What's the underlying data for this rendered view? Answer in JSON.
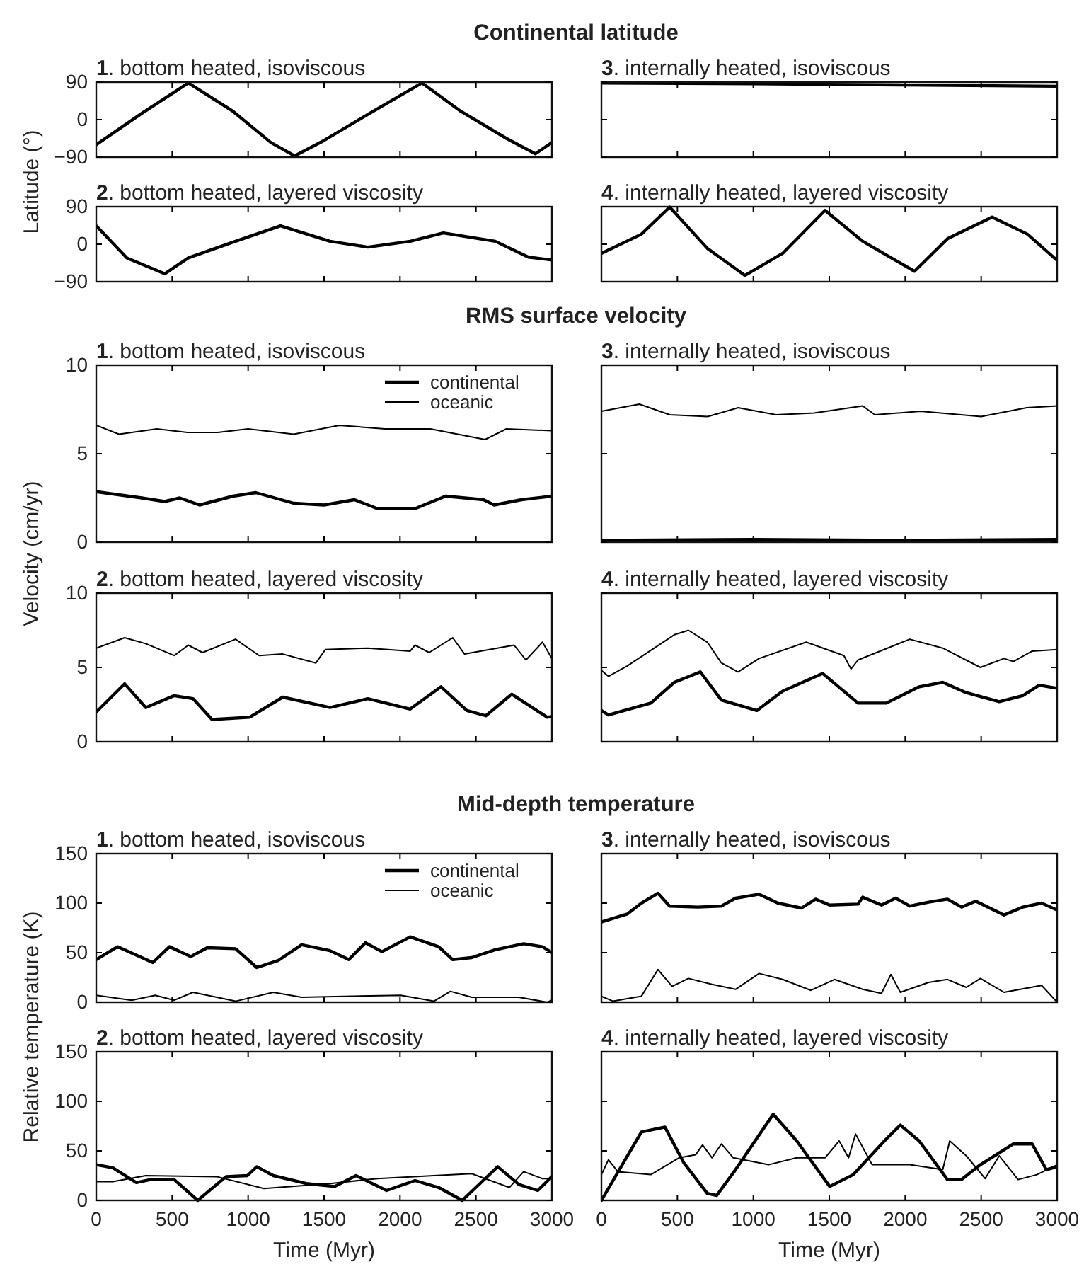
{
  "chart_data": [
    {
      "type": "line",
      "title": "Continental latitude",
      "subtitle": "1. bottom heated, isoviscous",
      "ylabel": "Latitude (°)",
      "tick_labels": "y",
      "xlim": [
        0,
        3000
      ],
      "xticks": [
        0,
        500,
        1000,
        1500,
        2000,
        2500,
        3000
      ],
      "ylim": [
        -90,
        90
      ],
      "yticks": [
        {
          "value": -90,
          "label": "−90"
        },
        0,
        90
      ],
      "series": [
        {
          "color": "#000000",
          "x": [
            0,
            300,
            606,
            900,
            1150,
            1306,
            1500,
            1800,
            2145,
            2400,
            2700,
            2891,
            3000
          ],
          "values": [
            -60,
            15,
            88,
            20,
            -55,
            -87,
            -50,
            15,
            88,
            20,
            -45,
            -82,
            -55
          ]
        }
      ]
    },
    {
      "type": "line",
      "subtitle": "3. internally heated, isoviscous",
      "tick_labels": false,
      "xlim": [
        0,
        3000
      ],
      "xticks": [
        0,
        500,
        1000,
        1500,
        2000,
        2500,
        3000
      ],
      "ylim": [
        -90,
        90
      ],
      "yticks": [
        -90,
        0,
        90
      ],
      "series": [
        {
          "color": "#000000",
          "x": [
            0,
            1000,
            2000,
            3000
          ],
          "values": [
            88,
            86,
            83,
            80
          ]
        }
      ]
    },
    {
      "type": "line",
      "subtitle": "2. bottom heated, layered viscosity",
      "tick_labels": "y",
      "xlim": [
        0,
        3000
      ],
      "xticks": [
        0,
        500,
        1000,
        1500,
        2000,
        2500,
        3000
      ],
      "ylim": [
        -90,
        90
      ],
      "yticks": [
        {
          "value": -90,
          "label": "−90"
        },
        0,
        90
      ],
      "series": [
        {
          "color": "#000000",
          "x": [
            0,
            202,
            451,
            606,
            917,
            1213,
            1539,
            1788,
            2067,
            2285,
            2627,
            2845,
            3000
          ],
          "values": [
            44,
            -33,
            -71,
            -33,
            7,
            44,
            7,
            -7,
            7,
            27,
            7,
            -31,
            -38
          ]
        }
      ]
    },
    {
      "type": "line",
      "subtitle": "4. internally heated, layered viscosity",
      "tick_labels": false,
      "xlim": [
        0,
        3000
      ],
      "xticks": [
        0,
        500,
        1000,
        1500,
        2000,
        2500,
        3000
      ],
      "ylim": [
        -90,
        90
      ],
      "yticks": [
        -90,
        0,
        90
      ],
      "series": [
        {
          "color": "#000000",
          "x": [
            0,
            263,
            449,
            697,
            945,
            1193,
            1472,
            1720,
            2061,
            2278,
            2572,
            2805,
            3000
          ],
          "values": [
            -22,
            24,
            89,
            -10,
            -75,
            -22,
            81,
            7,
            -65,
            13,
            65,
            24,
            -39
          ]
        }
      ]
    },
    {
      "type": "line",
      "title": "RMS surface velocity",
      "subtitle": "1. bottom heated, isoviscous",
      "ylabel": "Velocity (cm/yr)",
      "tick_labels": "y",
      "legend": "top right",
      "xlim": [
        0,
        3000
      ],
      "xticks": [
        0,
        500,
        1000,
        1500,
        2000,
        2500,
        3000
      ],
      "ylim": [
        0,
        10
      ],
      "yticks": [
        0,
        5,
        10
      ],
      "series": [
        {
          "name": "continental",
          "color": "#000000",
          "x": [
            0,
            300,
            450,
            550,
            680,
            900,
            1050,
            1300,
            1500,
            1700,
            1850,
            2100,
            2300,
            2550,
            2620,
            2800,
            3000
          ],
          "values": [
            2.85,
            2.5,
            2.3,
            2.5,
            2.1,
            2.6,
            2.8,
            2.2,
            2.1,
            2.4,
            1.9,
            1.9,
            2.6,
            2.4,
            2.1,
            2.4,
            2.6
          ]
        },
        {
          "name": "oceanic",
          "color": "#000000",
          "x": [
            0,
            150,
            400,
            600,
            800,
            1000,
            1300,
            1600,
            1900,
            2200,
            2560,
            2700,
            3000
          ],
          "values": [
            6.6,
            6.1,
            6.4,
            6.2,
            6.2,
            6.4,
            6.1,
            6.6,
            6.4,
            6.4,
            5.8,
            6.4,
            6.3
          ]
        }
      ]
    },
    {
      "type": "line",
      "subtitle": "3. internally heated, isoviscous",
      "tick_labels": false,
      "xlim": [
        0,
        3000
      ],
      "xticks": [
        0,
        500,
        1000,
        1500,
        2000,
        2500,
        3000
      ],
      "ylim": [
        0,
        10
      ],
      "yticks": [
        0,
        5,
        10
      ],
      "series": [
        {
          "color": "#000000",
          "x": [
            0,
            1000,
            2000,
            3000
          ],
          "values": [
            0.1,
            0.15,
            0.1,
            0.15
          ]
        },
        {
          "color": "#000000",
          "x": [
            0,
            250,
            450,
            700,
            900,
            1150,
            1400,
            1720,
            1800,
            2100,
            2500,
            2800,
            3000
          ],
          "values": [
            7.4,
            7.8,
            7.2,
            7.1,
            7.6,
            7.2,
            7.3,
            7.7,
            7.2,
            7.4,
            7.1,
            7.6,
            7.7
          ]
        }
      ]
    },
    {
      "type": "line",
      "subtitle": "2. bottom heated, layered viscosity",
      "tick_labels": "y",
      "xlim": [
        0,
        3000
      ],
      "xticks": [
        0,
        500,
        1000,
        1500,
        2000,
        2500,
        3000
      ],
      "ylim": [
        0,
        10
      ],
      "yticks": [
        0,
        5,
        10
      ],
      "series": [
        {
          "color": "#000000",
          "x": [
            0,
            187,
            326,
            513,
            637,
            762,
            1010,
            1228,
            1539,
            1788,
            2067,
            2270,
            2440,
            2565,
            2736,
            2969,
            3000
          ],
          "values": [
            2.0,
            3.9,
            2.3,
            3.1,
            2.9,
            1.5,
            1.65,
            3.0,
            2.3,
            2.9,
            2.2,
            3.7,
            2.1,
            1.75,
            3.2,
            1.65,
            1.7
          ]
        },
        {
          "color": "#000000",
          "x": [
            0,
            187,
            326,
            513,
            606,
            700,
            917,
            1073,
            1228,
            1446,
            1508,
            1788,
            2067,
            2099,
            2192,
            2347,
            2425,
            2751,
            2829,
            2938,
            3000
          ],
          "values": [
            6.3,
            7.0,
            6.6,
            5.8,
            6.5,
            6.0,
            6.9,
            5.8,
            5.9,
            5.3,
            6.2,
            6.3,
            6.1,
            6.5,
            6.0,
            7.0,
            5.9,
            6.5,
            5.5,
            6.7,
            5.6
          ]
        }
      ]
    },
    {
      "type": "line",
      "subtitle": "4. internally heated, layered viscosity",
      "tick_labels": false,
      "xlim": [
        0,
        3000
      ],
      "xticks": [
        0,
        500,
        1000,
        1500,
        2000,
        2500,
        3000
      ],
      "ylim": [
        0,
        10
      ],
      "yticks": [
        0,
        5,
        10
      ],
      "series": [
        {
          "color": "#000000",
          "x": [
            0,
            46,
            325,
            480,
            651,
            790,
            1023,
            1193,
            1456,
            1689,
            1875,
            2092,
            2247,
            2402,
            2619,
            2774,
            2882,
            3000
          ],
          "values": [
            2.1,
            1.8,
            2.6,
            4.0,
            4.7,
            2.8,
            2.1,
            3.4,
            4.6,
            2.6,
            2.6,
            3.7,
            4.0,
            3.3,
            2.7,
            3.1,
            3.8,
            3.6
          ]
        },
        {
          "color": "#000000",
          "x": [
            0,
            46,
            170,
            480,
            573,
            697,
            790,
            899,
            1038,
            1348,
            1596,
            1643,
            1689,
            2030,
            2247,
            2495,
            2650,
            2712,
            2836,
            3000
          ],
          "values": [
            4.8,
            4.4,
            5.1,
            7.2,
            7.5,
            6.7,
            5.3,
            4.7,
            5.6,
            6.7,
            5.8,
            4.9,
            5.5,
            6.9,
            6.3,
            5.0,
            5.6,
            5.4,
            6.1,
            6.2
          ]
        }
      ]
    },
    {
      "type": "line",
      "title": "Mid-depth temperature",
      "subtitle": "1. bottom heated, isoviscous",
      "ylabel": "Relative temperature (K)",
      "tick_labels": "y",
      "legend": "top right",
      "xlim": [
        0,
        3000
      ],
      "xticks": [
        0,
        500,
        1000,
        1500,
        2000,
        2500,
        3000
      ],
      "ylim": [
        0,
        150
      ],
      "yticks": [
        0,
        50,
        100,
        150
      ],
      "series": [
        {
          "name": "continental",
          "color": "#000000",
          "x": [
            0,
            140,
            373,
            482,
            622,
            731,
            917,
            1057,
            1197,
            1352,
            1539,
            1663,
            1772,
            1881,
            2067,
            2254,
            2347,
            2472,
            2627,
            2814,
            2938,
            3000
          ],
          "values": [
            43,
            56,
            40,
            56,
            46,
            55,
            54,
            35,
            42,
            58,
            52,
            43,
            60,
            51,
            66,
            56,
            43,
            45,
            53,
            59,
            56,
            50
          ]
        },
        {
          "name": "oceanic",
          "color": "#000000",
          "x": [
            0,
            233,
            389,
            513,
            637,
            917,
            1166,
            1352,
            2005,
            2223,
            2332,
            2472,
            2783,
            2969,
            3000
          ],
          "values": [
            7,
            2,
            7,
            2,
            10,
            1,
            10,
            5,
            7,
            1,
            11,
            5,
            5,
            0,
            2
          ]
        }
      ]
    },
    {
      "type": "line",
      "subtitle": "3. internally heated, isoviscous",
      "tick_labels": false,
      "xlim": [
        0,
        3000
      ],
      "xticks": [
        0,
        500,
        1000,
        1500,
        2000,
        2500,
        3000
      ],
      "ylim": [
        0,
        150
      ],
      "yticks": [
        0,
        50,
        100,
        150
      ],
      "series": [
        {
          "color": "#000000",
          "x": [
            0,
            170,
            263,
            372,
            449,
            635,
            790,
            883,
            1038,
            1162,
            1317,
            1410,
            1503,
            1689,
            1720,
            1844,
            1937,
            2030,
            2154,
            2278,
            2371,
            2464,
            2650,
            2774,
            2898,
            3000
          ],
          "values": [
            81,
            89,
            100,
            110,
            97,
            96,
            97,
            105,
            109,
            100,
            95,
            104,
            98,
            99,
            106,
            98,
            105,
            97,
            101,
            104,
            96,
            102,
            88,
            96,
            100,
            93
          ]
        },
        {
          "color": "#000000",
          "x": [
            0,
            77,
            263,
            372,
            465,
            573,
            728,
            883,
            1038,
            1193,
            1379,
            1534,
            1720,
            1844,
            1906,
            1968,
            2154,
            2278,
            2402,
            2495,
            2650,
            2898,
            3000
          ],
          "values": [
            6,
            1,
            6,
            33,
            16,
            24,
            18,
            13,
            29,
            23,
            12,
            23,
            13,
            9,
            28,
            10,
            20,
            23,
            15,
            24,
            10,
            17,
            0
          ]
        }
      ]
    },
    {
      "type": "line",
      "subtitle": "2. bottom heated, layered viscosity",
      "xlabel": "Time (Myr)",
      "xlim": [
        0,
        3000
      ],
      "xticks": [
        0,
        500,
        1000,
        1500,
        2000,
        2500,
        3000
      ],
      "ylim": [
        0,
        150
      ],
      "yticks": [
        0,
        50,
        100,
        150
      ],
      "series": [
        {
          "color": "#000000",
          "x": [
            0,
            109,
            264,
            358,
            513,
            668,
            855,
            995,
            1057,
            1166,
            1383,
            1570,
            1710,
            1912,
            2099,
            2254,
            2410,
            2643,
            2783,
            2907,
            3000
          ],
          "values": [
            36,
            33,
            18,
            21,
            21,
            0,
            24,
            25,
            34,
            25,
            17,
            14,
            25,
            10,
            20,
            13,
            0,
            34,
            16,
            10,
            24
          ]
        },
        {
          "color": "#000000",
          "x": [
            0,
            109,
            326,
            793,
            1104,
            1539,
            1850,
            2223,
            2472,
            2720,
            2814,
            2938,
            3000
          ],
          "values": [
            19,
            19,
            25,
            24,
            12,
            17,
            22,
            25,
            27,
            13,
            29,
            22,
            22
          ]
        }
      ]
    },
    {
      "type": "line",
      "subtitle": "4. internally heated, layered viscosity",
      "xlabel": "Time (Myr)",
      "tick_labels": "x",
      "xlim": [
        0,
        3000
      ],
      "xticks": [
        0,
        500,
        1000,
        1500,
        2000,
        2500,
        3000
      ],
      "ylim": [
        0,
        150
      ],
      "yticks": [
        0,
        50,
        100,
        150
      ],
      "series": [
        {
          "color": "#000000",
          "x": [
            0,
            263,
            418,
            542,
            697,
            759,
            883,
            1131,
            1286,
            1503,
            1658,
            1875,
            1968,
            2092,
            2278,
            2371,
            2495,
            2712,
            2836,
            2929,
            3000
          ],
          "values": [
            0,
            69,
            74,
            38,
            7,
            5,
            31,
            87,
            60,
            14,
            26,
            62,
            76,
            60,
            21,
            21,
            36,
            57,
            57,
            31,
            34
          ]
        },
        {
          "color": "#000000",
          "x": [
            0,
            46,
            108,
            325,
            511,
            620,
            666,
            728,
            790,
            868,
            1100,
            1286,
            1472,
            1565,
            1627,
            1673,
            1782,
            2030,
            2247,
            2293,
            2402,
            2526,
            2619,
            2743,
            2867,
            3000
          ],
          "values": [
            26,
            41,
            29,
            26,
            43,
            46,
            56,
            43,
            57,
            43,
            36,
            43,
            43,
            60,
            43,
            67,
            36,
            36,
            31,
            60,
            45,
            22,
            45,
            21,
            26,
            36
          ]
        }
      ]
    }
  ]
}
